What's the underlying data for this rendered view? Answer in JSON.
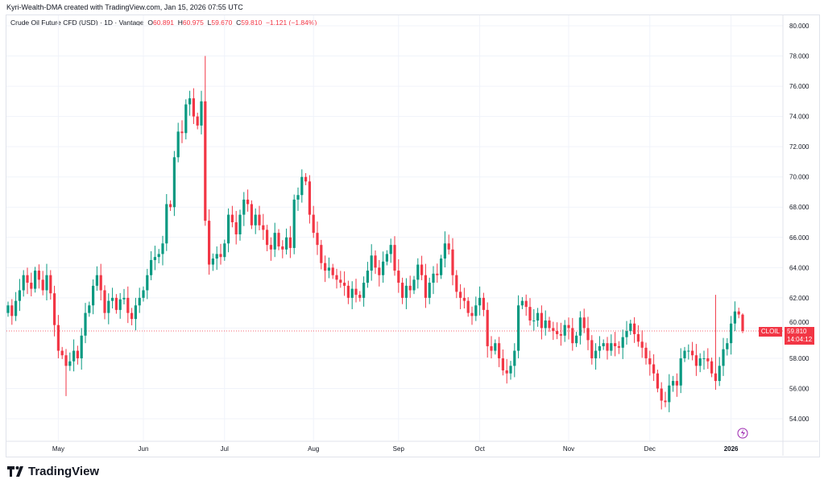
{
  "caption": "Kyri-Wealth-DMA created with TradingView.com, Jan 15, 2026 07:55 UTC",
  "legend": {
    "title": "Crude Oil Future CFD (USD) · 1D · Vantage",
    "o_label": "O",
    "o": "60.891",
    "h_label": "H",
    "h": "60.975",
    "l_label": "L",
    "l": "59.670",
    "c_label": "C",
    "c": "59.810",
    "change": "−1.121 (−1.84%)"
  },
  "price_tag": {
    "symbol": "CLOIL",
    "price": "59.810",
    "countdown": "14:04:12"
  },
  "brand": "TradingView",
  "colors": {
    "up": "#089981",
    "down": "#f23645"
  },
  "chart_data": {
    "type": "candlestick",
    "ylim": [
      53,
      81
    ],
    "yticks": [
      "54.000",
      "56.000",
      "58.000",
      "60.000",
      "62.000",
      "64.000",
      "66.000",
      "68.000",
      "70.000",
      "72.000",
      "74.000",
      "76.000",
      "78.000",
      "80.000"
    ],
    "xticks": [
      {
        "label": "May",
        "bar": 13
      },
      {
        "label": "Jun",
        "bar": 35
      },
      {
        "label": "Jul",
        "bar": 56
      },
      {
        "label": "Aug",
        "bar": 79
      },
      {
        "label": "Sep",
        "bar": 101
      },
      {
        "label": "Oct",
        "bar": 122
      },
      {
        "label": "Nov",
        "bar": 145
      },
      {
        "label": "Dec",
        "bar": 166
      },
      {
        "label": "2026",
        "bar": 187
      }
    ],
    "first_open": 61.0,
    "closes": [
      61.5,
      60.8,
      61.8,
      62.5,
      63.5,
      63.0,
      62.6,
      63.8,
      63.2,
      62.5,
      63.5,
      62.3,
      60.2,
      58.5,
      58.2,
      57.5,
      57.8,
      58.5,
      58.0,
      59.5,
      61.0,
      61.5,
      62.8,
      63.5,
      62.5,
      61.0,
      61.8,
      62.0,
      61.2,
      61.9,
      62.0,
      61.0,
      60.6,
      61.5,
      62.0,
      62.5,
      63.5,
      64.5,
      64.7,
      64.9,
      65.6,
      68.2,
      68.0,
      71.3,
      73.0,
      72.9,
      74.8,
      75.2,
      74.0,
      73.4,
      75.0,
      67.1,
      64.2,
      64.6,
      64.9,
      64.7,
      65.6,
      67.5,
      67.0,
      66.2,
      67.5,
      68.5,
      68.2,
      66.8,
      67.5,
      66.8,
      66.5,
      65.5,
      65.2,
      66.3,
      65.4,
      65.2,
      66.0,
      65.3,
      68.5,
      68.8,
      70.0,
      69.7,
      67.5,
      66.3,
      65.5,
      64.3,
      63.8,
      64.0,
      63.5,
      63.2,
      63.0,
      62.8,
      62.0,
      62.6,
      62.2,
      62.0,
      63.0,
      63.8,
      64.8,
      64.0,
      63.5,
      64.4,
      64.9,
      65.5,
      63.8,
      63.0,
      62.0,
      62.8,
      62.5,
      63.2,
      64.2,
      63.5,
      62.0,
      63.0,
      63.6,
      63.5,
      64.6,
      65.6,
      65.2,
      63.5,
      62.4,
      62.0,
      61.8,
      61.0,
      60.8,
      61.5,
      62.0,
      61.2,
      58.8,
      58.5,
      59.0,
      58.0,
      57.2,
      57.0,
      57.5,
      58.5,
      61.5,
      61.8,
      61.4,
      60.5,
      60.5,
      61.0,
      60.0,
      60.5,
      60.0,
      59.8,
      59.6,
      59.5,
      60.2,
      60.0,
      59.0,
      59.5,
      60.7,
      60.0,
      59.2,
      58.0,
      58.5,
      58.8,
      59.0,
      58.5,
      59.0,
      58.8,
      58.7,
      59.4,
      59.8,
      60.3,
      59.6,
      59.1,
      58.7,
      58.0,
      57.6,
      57.0,
      56.0,
      55.2,
      55.1,
      56.2,
      56.5,
      56.2,
      58.0,
      58.5,
      58.5,
      58.2,
      57.5,
      58.0,
      58.0,
      57.8,
      57.0,
      56.5,
      57.5,
      58.6,
      59.0,
      60.3,
      61.1,
      60.9,
      59.81
    ],
    "high_overrides": [
      [
        15,
        55.5
      ],
      [
        51,
        78.0
      ],
      [
        50,
        75.7
      ],
      [
        76,
        70.5
      ],
      [
        113,
        66.4
      ],
      [
        183,
        62.2
      ]
    ],
    "last_price": 59.81
  }
}
